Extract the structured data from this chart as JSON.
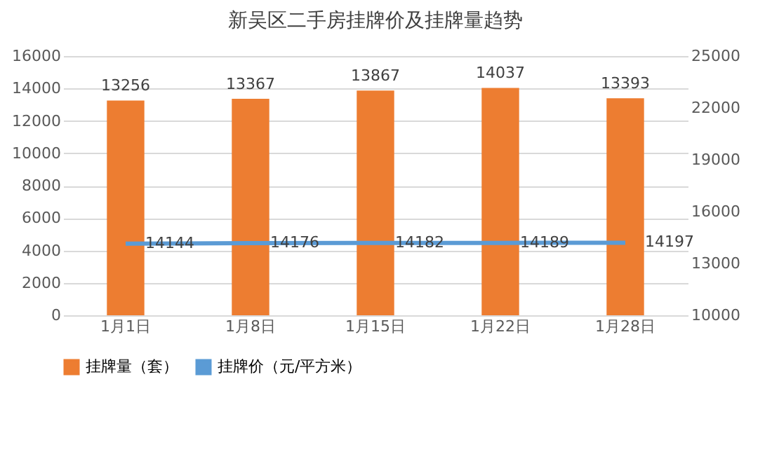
{
  "chart_data": {
    "type": "bar",
    "title": "新吴区二手房挂牌价及挂牌量趋势",
    "categories": [
      "1月1日",
      "1月8日",
      "1月15日",
      "1月22日",
      "1月28日"
    ],
    "series": [
      {
        "name": "挂牌量（套）",
        "color": "#ed7d31",
        "values": [
          13256,
          13367,
          13867,
          14037,
          13393
        ]
      },
      {
        "name": "挂牌价（元/平方米）",
        "type": "line",
        "axis": "y2",
        "color": "#5b9bd5",
        "values": [
          14144,
          14176,
          14182,
          14189,
          14197
        ]
      }
    ],
    "ylim": [
      0,
      16000
    ],
    "yticks": [
      0,
      2000,
      4000,
      6000,
      8000,
      10000,
      12000,
      14000,
      16000
    ],
    "y2lim": [
      10000,
      25000
    ],
    "y2ticks": [
      10000,
      13000,
      16000,
      19000,
      22000,
      25000
    ],
    "grid": "y",
    "legend": "bottom",
    "data_labels": true
  }
}
